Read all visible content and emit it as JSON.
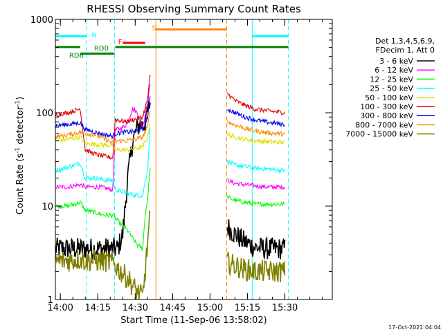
{
  "chart_data": {
    "type": "line",
    "title": "RHESSI Observing Summary Count Rates",
    "xlabel": "Start Time (11-Sep-06 13:58:02)",
    "ylabel_main": "Count Rate (s",
    "ylabel_sup1": "-1",
    "ylabel_mid": " detector",
    "ylabel_sup2": "-1",
    "ylabel_end": ")",
    "yscale": "log",
    "ylim": [
      1,
      1000
    ],
    "xlim_min": [
      0,
      111
    ],
    "x_unit_note": "minutes after 13:58:02",
    "y_ticks": [
      {
        "value": 1,
        "label": "1"
      },
      {
        "value": 10,
        "label": "10"
      },
      {
        "value": 100,
        "label": "100"
      },
      {
        "value": 1000,
        "label": "1000"
      }
    ],
    "x_ticks": [
      {
        "value": 2,
        "label": "14:00"
      },
      {
        "value": 17,
        "label": "14:15"
      },
      {
        "value": 32,
        "label": "14:30"
      },
      {
        "value": 47,
        "label": "14:45"
      },
      {
        "value": 62,
        "label": "15:00"
      },
      {
        "value": 77,
        "label": "15:15"
      },
      {
        "value": 92,
        "label": "15:30"
      }
    ],
    "legend_header": [
      "Det 1,3,4,5,6,9,",
      "FDecim 1, Att 0"
    ],
    "series": [
      {
        "name": "3 - 6 keV",
        "color": "#000000",
        "segments": [
          {
            "x": [
              0,
              10,
              18,
              25,
              27,
              29,
              31,
              33,
              34,
              35,
              36,
              37,
              38
            ],
            "y": [
              3.5,
              3.5,
              3.5,
              3.5,
              5,
              20,
              50,
              70,
              78,
              72,
              80,
              100,
              130
            ]
          },
          {
            "x": [
              69,
              72,
              75,
              80,
              85,
              92
            ],
            "y": [
              6,
              5,
              4.3,
              3.6,
              3.5,
              3.5
            ]
          }
        ]
      },
      {
        "name": "6 - 12 keV",
        "color": "#ff00ff",
        "segments": [
          {
            "x": [
              0,
              5,
              10,
              12,
              18,
              23,
              24,
              26,
              28,
              30,
              31,
              32,
              33,
              34,
              35,
              36,
              37,
              38
            ],
            "y": [
              16,
              16,
              17,
              16,
              16,
              15,
              65,
              68,
              72,
              95,
              110,
              105,
              100,
              80,
              70,
              95,
              130,
              200
            ]
          },
          {
            "x": [
              69,
              72,
              76,
              80,
              85,
              92
            ],
            "y": [
              19,
              17.5,
              17,
              16.5,
              16,
              16
            ]
          }
        ]
      },
      {
        "name": "12 - 25 keV",
        "color": "#00ff00",
        "segments": [
          {
            "x": [
              0,
              5,
              10,
              12,
              16,
              20,
              23,
              26,
              29,
              31,
              33,
              35,
              36,
              37,
              38
            ],
            "y": [
              10,
              10,
              11,
              9,
              8.5,
              8,
              8,
              6.5,
              5.5,
              4.5,
              3.8,
              3.5,
              8,
              12,
              25
            ]
          },
          {
            "x": [
              69,
              72,
              76,
              80,
              85,
              92
            ],
            "y": [
              12.5,
              11.5,
              11,
              10.5,
              10.5,
              10.5
            ]
          }
        ]
      },
      {
        "name": "25 - 50 keV",
        "color": "#00ffff",
        "segments": [
          {
            "x": [
              0,
              5,
              10,
              12,
              16,
              20,
              23,
              24,
              28,
              32,
              35,
              37,
              38
            ],
            "y": [
              24,
              26,
              29,
              20,
              20,
              19,
              19,
              15,
              14,
              13,
              13,
              25,
              70
            ]
          },
          {
            "x": [
              69,
              72,
              76,
              80,
              85,
              92
            ],
            "y": [
              30,
              27.5,
              26.5,
              25.5,
              25,
              24
            ]
          }
        ]
      },
      {
        "name": "50 - 100 keV",
        "color": "#e0e000",
        "segments": [
          {
            "x": [
              0,
              5,
              10,
              12,
              16,
              20,
              23,
              24,
              28,
              32,
              35,
              37,
              38
            ],
            "y": [
              50,
              52,
              55,
              47,
              46,
              45,
              45,
              40,
              40,
              41,
              43,
              55,
              80
            ]
          },
          {
            "x": [
              69,
              72,
              76,
              80,
              85,
              92
            ],
            "y": [
              58,
              55,
              52,
              50,
              49,
              48
            ]
          }
        ]
      },
      {
        "name": "100 - 300 keV",
        "color": "#e00000",
        "segments": [
          {
            "x": [
              0,
              5,
              10,
              12,
              16,
              20,
              23,
              24,
              28,
              32,
              35,
              37,
              38
            ],
            "y": [
              95,
              100,
              110,
              40,
              36,
              34,
              33,
              85,
              80,
              85,
              90,
              140,
              250
            ]
          },
          {
            "x": [
              69,
              72,
              76,
              80,
              85,
              92
            ],
            "y": [
              160,
              135,
              120,
              110,
              105,
              100
            ]
          }
        ]
      },
      {
        "name": "300 - 800 keV",
        "color": "#0000ee",
        "segments": [
          {
            "x": [
              0,
              5,
              10,
              12,
              16,
              20,
              23,
              24,
              28,
              32,
              35,
              37,
              38
            ],
            "y": [
              73,
              75,
              78,
              66,
              62,
              58,
              56,
              60,
              62,
              63,
              66,
              90,
              150
            ]
          },
          {
            "x": [
              69,
              72,
              76,
              80,
              85,
              92
            ],
            "y": [
              110,
              100,
              90,
              84,
              79,
              75
            ]
          }
        ]
      },
      {
        "name": "800 - 7000 keV",
        "color": "#ff8800",
        "segments": [
          {
            "x": [
              0,
              5,
              10,
              12,
              16,
              20,
              23,
              24,
              28,
              32,
              35,
              37,
              38
            ],
            "y": [
              55,
              58,
              62,
              60,
              58,
              52,
              47,
              50,
              50,
              52,
              55,
              70,
              110
            ]
          },
          {
            "x": [
              69,
              72,
              76,
              80,
              85,
              92
            ],
            "y": [
              80,
              74,
              68,
              64,
              61,
              59
            ]
          }
        ]
      },
      {
        "name": "7000 - 15000 keV",
        "color": "#808000",
        "segments": [
          {
            "x": [
              0,
              5,
              10,
              12,
              18,
              23,
              26,
              29,
              31,
              33,
              35,
              36,
              37,
              38
            ],
            "y": [
              2.6,
              2.6,
              2.7,
              2.6,
              2.6,
              2.5,
              2.0,
              1.7,
              1.4,
              1.2,
              1.05,
              2.0,
              4.0,
              8.0
            ]
          },
          {
            "x": [
              69,
              72,
              76,
              80,
              85,
              92
            ],
            "y": [
              2.5,
              2.3,
              2.1,
              2.0,
              2.0,
              2.0
            ]
          }
        ]
      }
    ],
    "vertical_lines": [
      {
        "x": 12.6,
        "color": "#00ffff",
        "style": "dashed"
      },
      {
        "x": 23.7,
        "color": "#00ffff",
        "style": "dashed"
      },
      {
        "x": 40.3,
        "color": "#ff8800",
        "style": "solid"
      },
      {
        "x": 68.7,
        "color": "#ff8800",
        "style": "dashed"
      },
      {
        "x": 78.9,
        "color": "#00ffff",
        "style": "solid"
      },
      {
        "x": 93.4,
        "color": "#00ffff",
        "style": "dashed"
      }
    ],
    "annotations": [
      {
        "label": "N",
        "color": "#00ffff",
        "x_start": 0,
        "x_end": 12.6,
        "y": 660,
        "label_x": 14.5,
        "label_y": 690
      },
      {
        "label": "",
        "color": "#00ffff",
        "x_start": 78.9,
        "x_end": 93.4,
        "y": 660,
        "label_x": null,
        "label_y": null
      },
      {
        "label": "F",
        "color": "#ff0000",
        "x_start": 27,
        "x_end": 36,
        "y": 560,
        "label_x": 25.2,
        "label_y": 580
      },
      {
        "label": "S",
        "color": "#ff8800",
        "x_start": 40.3,
        "x_end": 68.7,
        "y": 780,
        "label_x": 38.7,
        "label_y": 820
      },
      {
        "label": "RD0",
        "color": "#008000",
        "x_start": 24,
        "x_end": 93.4,
        "y": 505,
        "label_x": 15.5,
        "label_y": 495
      },
      {
        "label": "",
        "color": "#008000",
        "x_start": 0,
        "x_end": 10,
        "y": 505,
        "label_x": null,
        "label_y": null
      },
      {
        "label": "RD6",
        "color": "#008000",
        "x_start": 10,
        "x_end": 23.7,
        "y": 430,
        "label_x": 5.5,
        "label_y": 415
      }
    ],
    "footer_date": "17-Oct-2021 04:04"
  }
}
